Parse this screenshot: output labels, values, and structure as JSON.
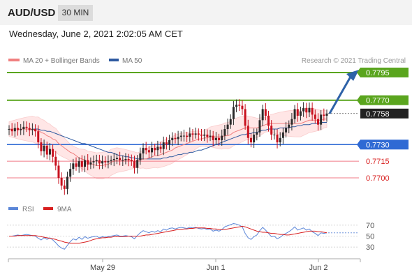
{
  "header": {
    "pair": "AUD/USD",
    "timeframe": "30 MIN",
    "datetime": "Wednesday, June 2, 2021 2:02:05 AM CET"
  },
  "legend": {
    "ma20_label": "MA 20 + Bollinger Bands",
    "ma50_label": "MA 50",
    "credit": "Research © 2021 Trading Central",
    "rsi_label": "RSI",
    "ma9_label": "9MA"
  },
  "colors": {
    "support_resistance_green": "#5aa51e",
    "support_blue": "#2f6ad4",
    "support_red": "#f07a86",
    "current_price": "#222222",
    "bollinger_fill": "#ffe6e6",
    "ma20": "#f08080",
    "ma50": "#2e5aa0",
    "candle_up": "#2b2b2b",
    "candle_down": "#c8101e",
    "rsi_line": "#5b86d8",
    "ma9_line": "#d82020",
    "target_arrow": "#2e62a8"
  },
  "chart_data": [
    {
      "type": "candlestick",
      "title": "AUD/USD 30 MIN",
      "x_tick_labels": [
        "May 29",
        "Jun 1",
        "Jun 2"
      ],
      "ylim": [
        0.7683,
        0.78
      ],
      "current_price": 0.7758,
      "levels": [
        {
          "value": 0.7795,
          "label": "0.7795",
          "kind": "resistance",
          "color": "#5aa51e"
        },
        {
          "value": 0.777,
          "label": "0.7770",
          "kind": "resistance",
          "color": "#5aa51e"
        },
        {
          "value": 0.7758,
          "label": "0.7758",
          "kind": "current",
          "color": "#222222"
        },
        {
          "value": 0.773,
          "label": "0.7730",
          "kind": "pivot",
          "color": "#2f6ad4"
        },
        {
          "value": 0.7715,
          "label": "0.7715",
          "kind": "support",
          "color": "#f07a86"
        },
        {
          "value": 0.77,
          "label": "0.7700",
          "kind": "support",
          "color": "#f07a86"
        }
      ],
      "close_series": [
        0.7744,
        0.7742,
        0.7745,
        0.7743,
        0.7744,
        0.7746,
        0.7745,
        0.7743,
        0.7744,
        0.7742,
        0.7732,
        0.7724,
        0.7729,
        0.7721,
        0.7726,
        0.7719,
        0.7711,
        0.77,
        0.7693,
        0.769,
        0.7701,
        0.7708,
        0.7713,
        0.771,
        0.7715,
        0.771,
        0.7716,
        0.7712,
        0.7714,
        0.7715,
        0.7716,
        0.7713,
        0.7715,
        0.7714,
        0.7715,
        0.7716,
        0.7717,
        0.7718,
        0.7716,
        0.7716,
        0.7717,
        0.7716,
        0.7715,
        0.7709,
        0.7716,
        0.7722,
        0.7727,
        0.7725,
        0.7723,
        0.7727,
        0.7725,
        0.7728,
        0.7726,
        0.7732,
        0.773,
        0.7734,
        0.7736,
        0.7735,
        0.7737,
        0.7738,
        0.7738,
        0.7737,
        0.774,
        0.7739,
        0.774,
        0.7739,
        0.7738,
        0.7739,
        0.7737,
        0.7738,
        0.7734,
        0.7736,
        0.7734,
        0.7738,
        0.7744,
        0.7748,
        0.7753,
        0.7764,
        0.7766,
        0.7765,
        0.7762,
        0.7747,
        0.7736,
        0.7732,
        0.7739,
        0.7741,
        0.7752,
        0.7762,
        0.7756,
        0.7747,
        0.7739,
        0.7739,
        0.7732,
        0.7736,
        0.7741,
        0.7745,
        0.7748,
        0.7753,
        0.7762,
        0.7756,
        0.776,
        0.7763,
        0.7759,
        0.7763,
        0.7757,
        0.7753,
        0.7748,
        0.7757,
        0.7756,
        0.7758
      ],
      "ma20": [
        0.7744,
        0.7744,
        0.7744,
        0.7744,
        0.7744,
        0.7744,
        0.7744,
        0.7744,
        0.7744,
        0.7743,
        0.7743,
        0.7741,
        0.774,
        0.7738,
        0.7737,
        0.7735,
        0.7734,
        0.7731,
        0.7729,
        0.7727,
        0.7725,
        0.7723,
        0.7722,
        0.772,
        0.7718,
        0.7717,
        0.7716,
        0.7714,
        0.7713,
        0.7712,
        0.7711,
        0.7711,
        0.7711,
        0.7712,
        0.7712,
        0.7714,
        0.7715,
        0.7716,
        0.7716,
        0.7716,
        0.7716,
        0.7716,
        0.7716,
        0.7716,
        0.7716,
        0.7716,
        0.7717,
        0.7717,
        0.7718,
        0.7719,
        0.772,
        0.772,
        0.7721,
        0.7722,
        0.7723,
        0.7724,
        0.7725,
        0.7727,
        0.7728,
        0.7729,
        0.773,
        0.7731,
        0.7732,
        0.7733,
        0.7734,
        0.7735,
        0.7735,
        0.7736,
        0.7736,
        0.7737,
        0.7737,
        0.7737,
        0.7737,
        0.7737,
        0.7738,
        0.7738,
        0.7739,
        0.7741,
        0.7742,
        0.7743,
        0.7744,
        0.7745,
        0.7745,
        0.7745,
        0.7745,
        0.7745,
        0.7746,
        0.7747,
        0.7748,
        0.7749,
        0.7749,
        0.7749,
        0.7749,
        0.7749,
        0.7749,
        0.7749,
        0.7749,
        0.7749,
        0.7749,
        0.7749,
        0.7749,
        0.775,
        0.7751,
        0.7752,
        0.7752,
        0.7752,
        0.7752,
        0.7752,
        0.7753,
        0.7753
      ],
      "ma50": [
        0.7744,
        0.7744,
        0.7744,
        0.7744,
        0.7744,
        0.7744,
        0.7744,
        0.7744,
        0.7744,
        0.7744,
        0.7744,
        0.7743,
        0.7743,
        0.7742,
        0.7742,
        0.7741,
        0.774,
        0.7739,
        0.7738,
        0.7737,
        0.7736,
        0.7735,
        0.7734,
        0.7733,
        0.7732,
        0.7731,
        0.7731,
        0.773,
        0.7729,
        0.7728,
        0.7727,
        0.7726,
        0.7725,
        0.7724,
        0.7723,
        0.7723,
        0.7722,
        0.7721,
        0.772,
        0.772,
        0.7719,
        0.7719,
        0.7718,
        0.7718,
        0.7717,
        0.7717,
        0.7717,
        0.7717,
        0.7717,
        0.7717,
        0.7717,
        0.7717,
        0.7717,
        0.7718,
        0.7718,
        0.7719,
        0.7719,
        0.772,
        0.7721,
        0.7721,
        0.7722,
        0.7722,
        0.7723,
        0.7723,
        0.7724,
        0.7725,
        0.7725,
        0.7726,
        0.7727,
        0.7728,
        0.7729,
        0.773,
        0.7731,
        0.7732,
        0.7733,
        0.7734,
        0.7735,
        0.7736,
        0.7737,
        0.7738,
        0.7739,
        0.7739,
        0.774,
        0.774,
        0.7741,
        0.7741,
        0.7742,
        0.7743,
        0.7743,
        0.7744,
        0.7744,
        0.7744,
        0.7744,
        0.7745,
        0.7745,
        0.7745,
        0.7745,
        0.7746,
        0.7746,
        0.7747,
        0.7747,
        0.7748,
        0.7748,
        0.7748,
        0.7749,
        0.7749,
        0.7749,
        0.775,
        0.775,
        0.775
      ],
      "bb_half_width": 0.0012,
      "target_arrow": {
        "from_index": 110,
        "from_value": 0.7758,
        "to_value": 0.7795
      }
    },
    {
      "type": "line",
      "title": "RSI",
      "ylim": [
        20,
        80
      ],
      "y_ticks": [
        "70",
        "50",
        "30"
      ],
      "series": [
        {
          "name": "RSI",
          "values": [
            50,
            50,
            51,
            52,
            51,
            52,
            53,
            52,
            51,
            50,
            46,
            43,
            47,
            44,
            47,
            43,
            38,
            32,
            28,
            26,
            33,
            40,
            45,
            43,
            48,
            44,
            49,
            46,
            48,
            49,
            50,
            47,
            49,
            48,
            49,
            50,
            51,
            52,
            50,
            50,
            51,
            50,
            49,
            45,
            51,
            56,
            60,
            58,
            56,
            59,
            57,
            60,
            58,
            63,
            61,
            64,
            65,
            63,
            65,
            66,
            65,
            64,
            66,
            65,
            66,
            64,
            63,
            64,
            62,
            63,
            59,
            61,
            59,
            62,
            67,
            69,
            71,
            73,
            72,
            70,
            67,
            55,
            47,
            44,
            49,
            52,
            60,
            66,
            61,
            55,
            49,
            50,
            45,
            48,
            52,
            55,
            58,
            62,
            67,
            61,
            63,
            65,
            61,
            63,
            58,
            55,
            51,
            56,
            55,
            56
          ]
        },
        {
          "name": "9MA",
          "values": [
            50,
            50,
            50,
            51,
            51,
            51,
            51,
            51,
            51,
            51,
            50,
            49,
            48,
            47,
            46,
            45,
            44,
            42,
            41,
            39,
            38,
            37,
            37,
            37,
            37,
            38,
            39,
            40,
            42,
            44,
            45,
            46,
            47,
            47,
            48,
            48,
            49,
            49,
            49,
            49,
            49,
            50,
            50,
            50,
            50,
            50,
            51,
            52,
            52,
            53,
            54,
            55,
            56,
            57,
            58,
            59,
            60,
            61,
            62,
            62,
            63,
            63,
            64,
            64,
            65,
            65,
            65,
            65,
            64,
            64,
            63,
            63,
            62,
            62,
            62,
            63,
            64,
            65,
            66,
            67,
            68,
            67,
            65,
            63,
            61,
            59,
            58,
            57,
            57,
            56,
            55,
            55,
            54,
            53,
            53,
            52,
            52,
            53,
            54,
            55,
            56,
            57,
            58,
            59,
            59,
            59,
            58,
            58,
            57,
            56
          ]
        }
      ]
    }
  ]
}
